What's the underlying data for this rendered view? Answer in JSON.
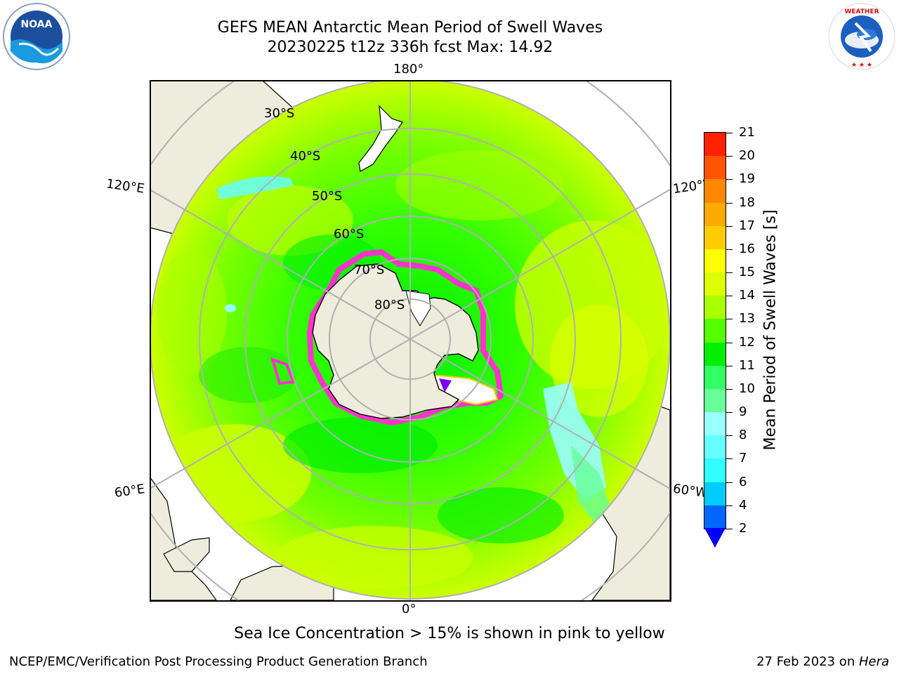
{
  "title": {
    "line1": "GEFS MEAN Antarctic Mean Period of Swell Waves",
    "line2": "20230225 t12z 336h fcst   Max: 14.92"
  },
  "logos": {
    "noaa": {
      "text": "NOAA",
      "icon": "noaa-logo"
    },
    "nws": {
      "text": "NATIONAL WEATHER SERVICE",
      "icon": "nws-logo"
    }
  },
  "map": {
    "projection": "south-polar-stereographic",
    "longitude_labels": {
      "top": "180°",
      "bottom": "0°",
      "left_upper": "120°E",
      "left_lower": "60°E",
      "right_upper": "120°W",
      "right_lower": "60°W"
    },
    "latitude_labels": [
      "30°S",
      "40°S",
      "50°S",
      "60°S",
      "70°S",
      "80°S"
    ],
    "colors": {
      "land": "#eeecdc",
      "antarctica": "#eeecdc",
      "grid": "#b0b0b0",
      "ice_edge": "#ff33cc",
      "dominant_field": "#66ff00"
    }
  },
  "colorbar": {
    "label": "Mean Period of Swell Waves [s]",
    "ticks": [
      "2",
      "4",
      "6",
      "7",
      "8",
      "9",
      "10",
      "11",
      "12",
      "13",
      "14",
      "15",
      "16",
      "17",
      "18",
      "19",
      "20",
      "21"
    ],
    "colors": [
      "#0066ff",
      "#00ccff",
      "#33ffff",
      "#66ffff",
      "#99ffff",
      "#66ff99",
      "#33ff66",
      "#00ee00",
      "#55ff00",
      "#aaff00",
      "#ddff00",
      "#ffff00",
      "#ffcc00",
      "#ffaa00",
      "#ff8800",
      "#ff5500",
      "#ff2200"
    ],
    "extend": "min",
    "under_color": "#0000ff"
  },
  "note": "Sea Ice Concentration > 15% is shown in pink to yellow",
  "footer": {
    "left": "NCEP/EMC/Verification Post Processing Product Generation Branch",
    "right_text": "27 Feb 2023 on ",
    "right_italic": "Hera"
  }
}
